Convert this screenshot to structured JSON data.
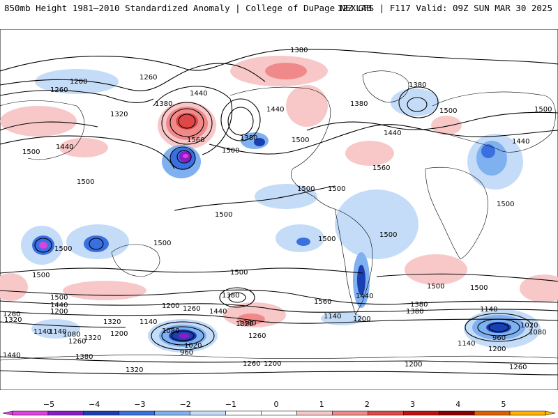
{
  "header": {
    "left": "850mb Height 1981–2010 Standardized Anomaly | College of DuPage NEXLAB",
    "right": "12Z GFS | F117 Valid: 09Z SUN MAR 30 2025"
  },
  "contour_labels": [
    "1380",
    "1260",
    "1200",
    "1260",
    "1320",
    "1380",
    "1440",
    "1560",
    "1440",
    "1380",
    "1500",
    "1440",
    "1500",
    "1380",
    "1380",
    "1500",
    "1500",
    "1440",
    "1500",
    "1500",
    "1440",
    "1560",
    "1500",
    "1500",
    "1500",
    "1500",
    "1500",
    "1500",
    "1500",
    "1500",
    "1500",
    "1500",
    "1500",
    "1500",
    "1560",
    "1500",
    "1440",
    "1320",
    "1200",
    "1260",
    "1440",
    "1380",
    "1320",
    "1380",
    "1380",
    "1440",
    "1320",
    "1140",
    "1080",
    "1020",
    "960",
    "1140",
    "1200",
    "1260",
    "1320",
    "1200",
    "1140",
    "1080",
    "1260",
    "1140",
    "1200",
    "1380",
    "1260",
    "1440",
    "1380",
    "1260",
    "1200",
    "1320",
    "1140",
    "1020",
    "1080",
    "960",
    "1140",
    "1200",
    "1260",
    "1200"
  ],
  "colorbar": {
    "ticks": [
      "−5",
      "−4",
      "−3",
      "−2",
      "−1",
      "0",
      "1",
      "2",
      "3",
      "4",
      "5"
    ],
    "colors": [
      "#e040e0",
      "#8a1cc8",
      "#1a3fb0",
      "#3a6fe0",
      "#7fb0f0",
      "#c4dcf8",
      "#ffffff",
      "#ffffff",
      "#f8c8c8",
      "#f08a8a",
      "#e04848",
      "#c01010",
      "#8a0000",
      "#e06000",
      "#ffb000"
    ]
  },
  "anomaly_colors": {
    "neg1": "#c4dcf8",
    "neg2": "#7fb0f0",
    "neg3": "#3a6fe0",
    "neg4": "#1a3fb0",
    "neg5": "#8a1cc8",
    "neg6": "#e040e0",
    "pos1": "#f8c8c8",
    "pos2": "#f08a8a",
    "pos3": "#e04848"
  }
}
